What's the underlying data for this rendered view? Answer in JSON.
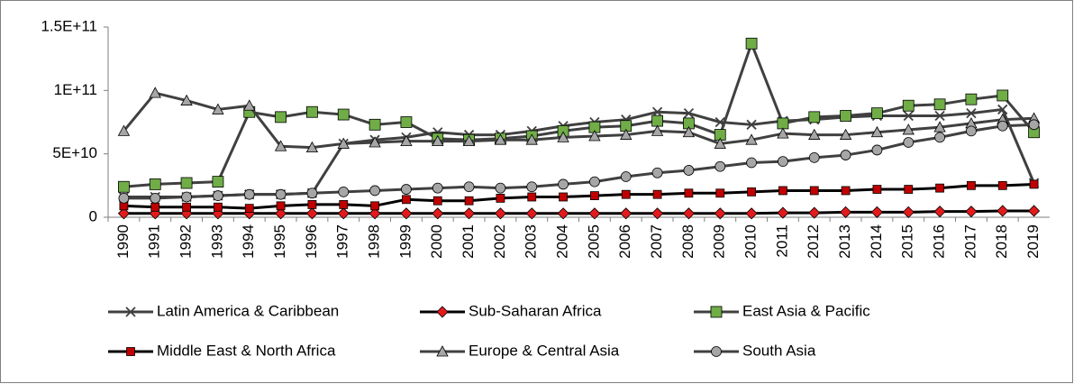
{
  "chart_data": {
    "type": "line",
    "categories": [
      "1990",
      "1991",
      "1992",
      "1993",
      "1994",
      "1995",
      "1996",
      "1997",
      "1998",
      "1999",
      "2000",
      "2001",
      "2002",
      "2003",
      "2004",
      "2005",
      "2006",
      "2007",
      "2008",
      "2009",
      "2010",
      "2011",
      "2012",
      "2013",
      "2014",
      "2015",
      "2016",
      "2017",
      "2018",
      "2019"
    ],
    "ylim": [
      0,
      150000000000.0
    ],
    "yticks": [
      0,
      {
        "value": 50000000000.0,
        "label": "5E+10"
      },
      {
        "value": 100000000000.0,
        "label": "1E+11"
      },
      {
        "value": 150000000000.0,
        "label": "1.5E+11"
      }
    ],
    "series": [
      {
        "name": "Latin America & Caribbean",
        "color": "#404040",
        "marker": "x",
        "values": [
          16000000000.0,
          16000000000.0,
          16000000000.0,
          17000000000.0,
          18000000000.0,
          18000000000.0,
          19000000000.0,
          58000000000.0,
          61000000000.0,
          63000000000.0,
          67000000000.0,
          65000000000.0,
          65000000000.0,
          68000000000.0,
          72000000000.0,
          75000000000.0,
          77000000000.0,
          83000000000.0,
          82000000000.0,
          75000000000.0,
          73000000000.0,
          76000000000.0,
          77000000000.0,
          79000000000.0,
          80000000000.0,
          80000000000.0,
          80000000000.0,
          82000000000.0,
          85000000000.0,
          27000000000.0
        ]
      },
      {
        "name": "Sub-Saharan Africa",
        "color": "#000000",
        "marker_color": "#e31a1c",
        "marker": "diamond",
        "values": [
          3000000000.0,
          3000000000.0,
          3000000000.0,
          3000000000.0,
          3000000000.0,
          3000000000.0,
          3000000000.0,
          3000000000.0,
          3000000000.0,
          3000000000.0,
          3000000000.0,
          3000000000.0,
          3000000000.0,
          3000000000.0,
          3000000000.0,
          3000000000.0,
          3000000000.0,
          3000000000.0,
          3000000000.0,
          3000000000.0,
          3000000000.0,
          3500000000.0,
          3500000000.0,
          4000000000.0,
          4000000000.0,
          4000000000.0,
          4500000000.0,
          4500000000.0,
          5000000000.0,
          5000000000.0
        ]
      },
      {
        "name": "East Asia & Pacific",
        "color": "#404040",
        "marker_color": "#70ad47",
        "marker": "square",
        "values": [
          24000000000.0,
          26000000000.0,
          27000000000.0,
          28000000000.0,
          83000000000.0,
          79000000000.0,
          83000000000.0,
          81000000000.0,
          73000000000.0,
          75000000000.0,
          62000000000.0,
          61000000000.0,
          62000000000.0,
          64000000000.0,
          68000000000.0,
          71000000000.0,
          72000000000.0,
          76000000000.0,
          74000000000.0,
          65000000000.0,
          137000000000.0,
          74000000000.0,
          79000000000.0,
          80000000000.0,
          82000000000.0,
          88000000000.0,
          89000000000.0,
          93000000000.0,
          96000000000.0,
          67000000000.0
        ]
      },
      {
        "name": "Middle East & North Africa",
        "color": "#000000",
        "marker_color": "#c00000",
        "marker": "smallsquare",
        "values": [
          9000000000.0,
          8000000000.0,
          8000000000.0,
          8000000000.0,
          7000000000.0,
          9000000000.0,
          10000000000.0,
          10000000000.0,
          9000000000.0,
          14000000000.0,
          13000000000.0,
          13000000000.0,
          15000000000.0,
          16000000000.0,
          16000000000.0,
          17000000000.0,
          18000000000.0,
          18000000000.0,
          19000000000.0,
          19000000000.0,
          20000000000.0,
          21000000000.0,
          21000000000.0,
          21000000000.0,
          22000000000.0,
          22000000000.0,
          23000000000.0,
          25000000000.0,
          25000000000.0,
          26000000000.0
        ]
      },
      {
        "name": "Europe & Central Asia",
        "color": "#404040",
        "marker_color": "#a6a6a6",
        "marker": "triangle",
        "values": [
          68000000000.0,
          98000000000.0,
          92000000000.0,
          85000000000.0,
          88000000000.0,
          56000000000.0,
          55000000000.0,
          58000000000.0,
          59000000000.0,
          60000000000.0,
          60000000000.0,
          60000000000.0,
          61000000000.0,
          61000000000.0,
          63000000000.0,
          64000000000.0,
          65000000000.0,
          68000000000.0,
          67000000000.0,
          58000000000.0,
          61000000000.0,
          66000000000.0,
          65000000000.0,
          65000000000.0,
          67000000000.0,
          69000000000.0,
          71000000000.0,
          74000000000.0,
          77000000000.0,
          78000000000.0
        ]
      },
      {
        "name": "South Asia",
        "color": "#404040",
        "marker_color": "#a6a6a6",
        "marker": "circle",
        "values": [
          15000000000.0,
          15000000000.0,
          16000000000.0,
          17000000000.0,
          18000000000.0,
          18000000000.0,
          19000000000.0,
          20000000000.0,
          21000000000.0,
          22000000000.0,
          23000000000.0,
          24000000000.0,
          23000000000.0,
          24000000000.0,
          26000000000.0,
          28000000000.0,
          32000000000.0,
          35000000000.0,
          37000000000.0,
          40000000000.0,
          43000000000.0,
          44000000000.0,
          47000000000.0,
          49000000000.0,
          53000000000.0,
          59000000000.0,
          63000000000.0,
          68000000000.0,
          72000000000.0,
          73000000000.0
        ]
      }
    ]
  }
}
